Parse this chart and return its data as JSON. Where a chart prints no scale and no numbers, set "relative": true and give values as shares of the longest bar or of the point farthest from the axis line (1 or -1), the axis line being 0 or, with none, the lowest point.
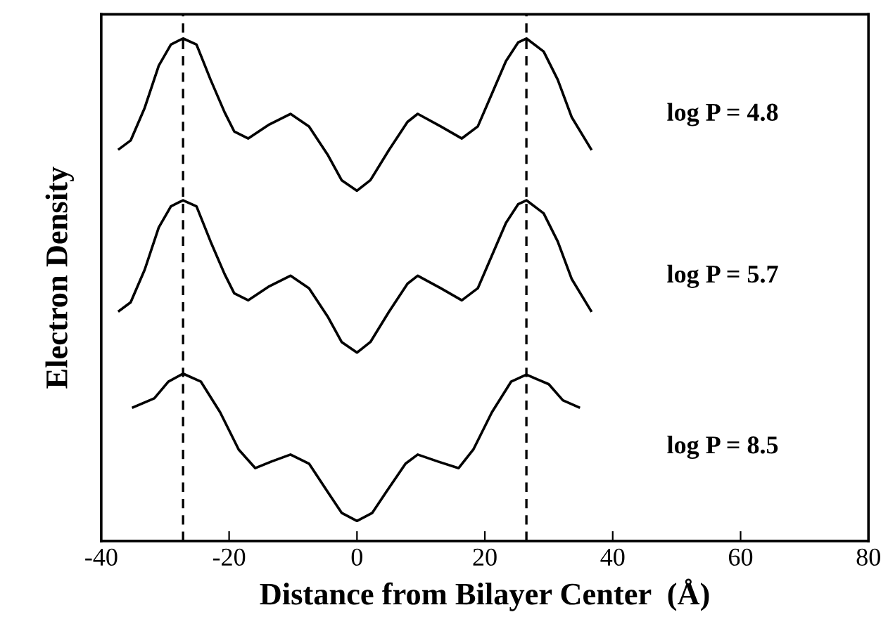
{
  "chart_data": {
    "type": "line",
    "relative": true,
    "xlabel": "Distance from Bilayer Center  (Å)",
    "ylabel": "Electron Density",
    "xlim": [
      -40,
      80
    ],
    "xticks": [
      -40,
      -20,
      0,
      20,
      40,
      60,
      80
    ],
    "tick_labels": "x",
    "grid": false,
    "legend": false,
    "marker": "none",
    "line_style": "solid",
    "series": [
      {
        "name": "log P = 4.8",
        "color": "#000000",
        "x": [
          -37.2,
          -35.4,
          -33.2,
          -31.0,
          -29.1,
          -27.2,
          -25.1,
          -22.9,
          -20.7,
          -19.2,
          -17.0,
          -13.7,
          -10.4,
          -7.5,
          -4.6,
          -2.4,
          0,
          2.1,
          5.0,
          7.9,
          9.5,
          13.1,
          16.4,
          18.9,
          21.1,
          23.3,
          25.2,
          26.5,
          29.2,
          31.4,
          33.6,
          36.6
        ],
        "values": [
          0.78,
          0.797,
          0.862,
          0.946,
          0.988,
          1.0,
          0.988,
          0.918,
          0.853,
          0.815,
          0.801,
          0.829,
          0.85,
          0.825,
          0.769,
          0.718,
          0.697,
          0.718,
          0.778,
          0.834,
          0.85,
          0.825,
          0.801,
          0.825,
          0.89,
          0.955,
          0.992,
          1.0,
          0.974,
          0.918,
          0.843,
          0.78
        ]
      },
      {
        "name": "log P = 5.7",
        "color": "#000000",
        "x": [
          -37.2,
          -35.4,
          -33.2,
          -31.0,
          -29.1,
          -27.2,
          -25.1,
          -22.9,
          -20.7,
          -19.2,
          -17.0,
          -13.7,
          -10.4,
          -7.5,
          -4.6,
          -2.4,
          0,
          2.1,
          5.0,
          7.9,
          9.5,
          13.1,
          16.4,
          18.9,
          21.1,
          23.3,
          25.2,
          26.5,
          29.2,
          31.4,
          33.6,
          36.6
        ],
        "values": [
          0.458,
          0.475,
          0.54,
          0.624,
          0.666,
          0.678,
          0.666,
          0.596,
          0.531,
          0.493,
          0.479,
          0.507,
          0.528,
          0.503,
          0.447,
          0.396,
          0.375,
          0.396,
          0.456,
          0.512,
          0.528,
          0.503,
          0.479,
          0.503,
          0.568,
          0.633,
          0.67,
          0.678,
          0.652,
          0.596,
          0.521,
          0.458
        ]
      },
      {
        "name": "log P = 8.5",
        "color": "#000000",
        "x": [
          -35.0,
          -31.7,
          -29.5,
          -27.2,
          -24.4,
          -21.4,
          -18.5,
          -15.9,
          -13.4,
          -10.4,
          -7.5,
          -4.6,
          -2.4,
          0,
          2.4,
          4.6,
          7.6,
          9.5,
          12.7,
          15.9,
          18.2,
          21.1,
          24.1,
          26.5,
          30.0,
          32.2,
          34.7
        ],
        "values": [
          0.266,
          0.284,
          0.317,
          0.333,
          0.317,
          0.256,
          0.182,
          0.145,
          0.158,
          0.172,
          0.154,
          0.098,
          0.056,
          0.04,
          0.056,
          0.098,
          0.154,
          0.172,
          0.158,
          0.145,
          0.182,
          0.256,
          0.317,
          0.331,
          0.312,
          0.28,
          0.266
        ]
      }
    ],
    "ref_lines": [
      {
        "axis": "x",
        "value": -27.2,
        "line_style": "dashed",
        "color": "#000000"
      },
      {
        "axis": "x",
        "value": 26.5,
        "line_style": "dashed",
        "color": "#000000"
      }
    ]
  }
}
